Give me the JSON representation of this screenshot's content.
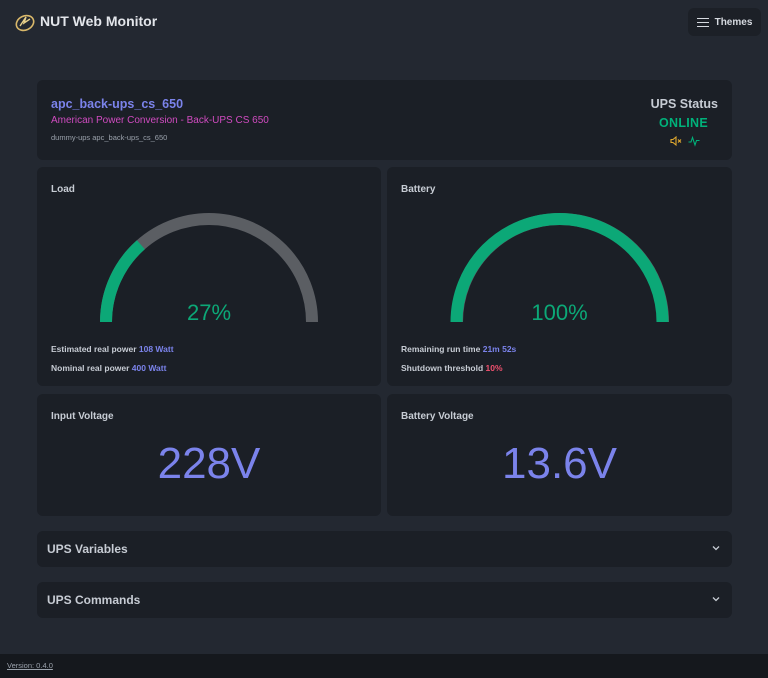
{
  "header": {
    "app_title": "NUT Web Monitor",
    "themes_label": "Themes",
    "logo_icon": "nut-logo-icon",
    "menu_icon": "hamburger-icon"
  },
  "device": {
    "name": "apc_back-ups_cs_650",
    "description": "American Power Conversion - Back-UPS CS 650",
    "identifier": "dummy-ups apc_back-ups_cs_650",
    "status_label": "UPS Status",
    "status_value": "ONLINE",
    "status_icons": [
      "speaker-muted-icon",
      "activity-pulse-icon"
    ]
  },
  "load": {
    "title": "Load",
    "value_text": "27%",
    "percent": 27,
    "metrics": [
      {
        "label": "Estimated real power",
        "value": "108 Watt"
      },
      {
        "label": "Nominal real power",
        "value": "400 Watt"
      }
    ]
  },
  "battery": {
    "title": "Battery",
    "value_text": "100%",
    "percent": 100,
    "metrics": [
      {
        "label": "Remaining run time",
        "value": "21m 52s"
      },
      {
        "label": "Shutdown threshold",
        "value": "10%"
      }
    ]
  },
  "input_voltage": {
    "title": "Input Voltage",
    "value": "228V"
  },
  "battery_voltage": {
    "title": "Battery Voltage",
    "value": "13.6V"
  },
  "sections": {
    "variables": "UPS Variables",
    "commands": "UPS Commands"
  },
  "footer": {
    "version": "Version: 0.4.0"
  },
  "colors": {
    "accent": "#7b83eb",
    "gauge_fill": "#0ca877",
    "gauge_track": "#5b5e63",
    "online": "#00b17a",
    "threshold": "#f0506e",
    "description": "#d04bc0"
  }
}
